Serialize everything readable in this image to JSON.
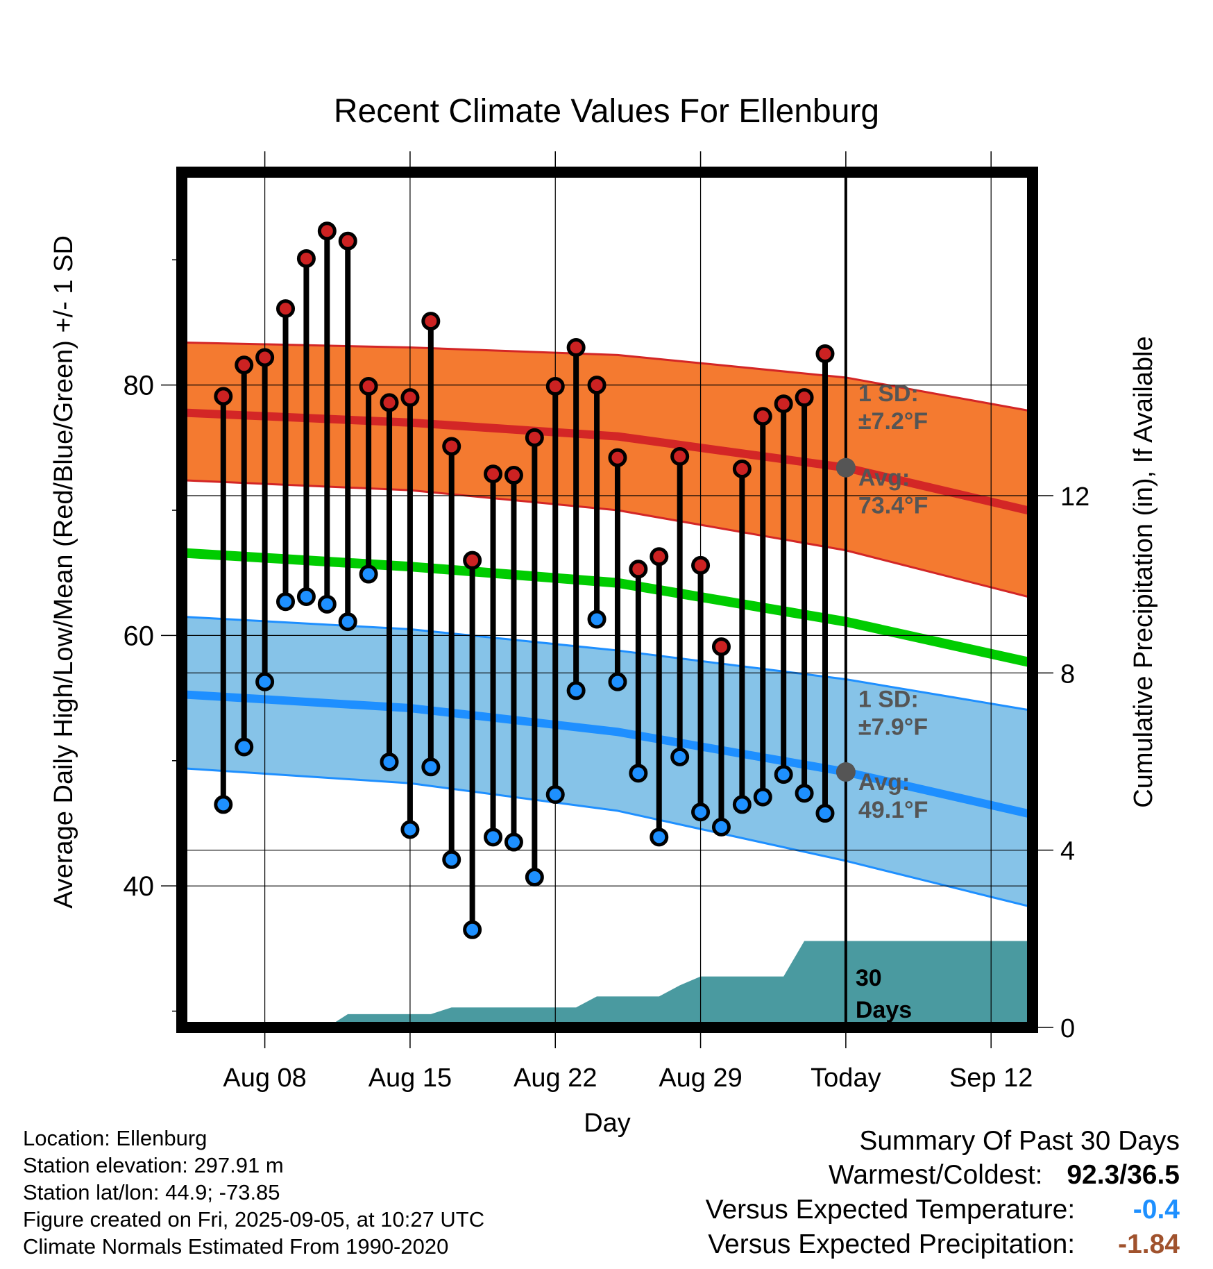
{
  "chart_data": {
    "type": "line",
    "title": "Recent Climate Values For Ellenburg",
    "xlabel": "Day",
    "ylabel": "Average Daily High/Low/Mean (Red/Blue/Green) +/- 1 SD",
    "y2label": "Cumulative Precipitation (in), If Available",
    "x_tick_labels": [
      "Aug 08",
      "Aug 15",
      "Aug 22",
      "Aug 29",
      "Today",
      "Sep 12"
    ],
    "x_tick_days": [
      "2025-08-08",
      "2025-08-15",
      "2025-08-22",
      "2025-08-29",
      "2025-09-05",
      "2025-09-12"
    ],
    "xlim": [
      "2025-08-04",
      "2025-09-14"
    ],
    "ylim": [
      28.7,
      97
    ],
    "y_ticks": [
      40,
      60,
      80
    ],
    "y2lim": [
      0,
      19.3
    ],
    "y2_ticks": [
      0,
      4,
      8,
      12
    ],
    "grid": true,
    "today": "2025-09-05",
    "daily_dates": [
      "2025-08-06",
      "2025-08-07",
      "2025-08-08",
      "2025-08-09",
      "2025-08-10",
      "2025-08-11",
      "2025-08-12",
      "2025-08-13",
      "2025-08-14",
      "2025-08-15",
      "2025-08-16",
      "2025-08-17",
      "2025-08-18",
      "2025-08-19",
      "2025-08-20",
      "2025-08-21",
      "2025-08-22",
      "2025-08-23",
      "2025-08-24",
      "2025-08-25",
      "2025-08-26",
      "2025-08-27",
      "2025-08-28",
      "2025-08-29",
      "2025-08-30",
      "2025-08-31",
      "2025-09-01",
      "2025-09-02",
      "2025-09-03",
      "2025-09-04"
    ],
    "series": [
      {
        "name": "Daily High",
        "color": "#cc2222",
        "values": [
          79.1,
          81.6,
          82.2,
          86.1,
          90.1,
          92.3,
          91.5,
          79.9,
          78.6,
          79.0,
          85.1,
          75.1,
          66.0,
          72.9,
          72.8,
          75.8,
          79.9,
          83.0,
          80.0,
          74.2,
          65.3,
          66.3,
          74.3,
          65.6,
          59.1,
          73.3,
          77.5,
          78.5,
          79.0,
          82.5
        ]
      },
      {
        "name": "Daily Low",
        "color": "#1e90ff",
        "values": [
          46.5,
          51.1,
          56.3,
          62.7,
          63.1,
          62.5,
          61.1,
          64.9,
          49.9,
          44.5,
          49.5,
          42.1,
          36.5,
          43.9,
          43.5,
          40.7,
          47.3,
          55.6,
          61.3,
          56.3,
          49.0,
          43.9,
          50.3,
          45.9,
          44.7,
          46.5,
          47.1,
          48.9,
          47.4,
          45.8
        ]
      }
    ],
    "normals": {
      "dates": [
        "2025-08-04",
        "2025-08-15",
        "2025-08-25",
        "2025-09-05",
        "2025-09-14"
      ],
      "high_mean": [
        77.8,
        77.0,
        75.9,
        73.4,
        69.9
      ],
      "high_upper": [
        83.4,
        83.0,
        82.4,
        80.6,
        77.9
      ],
      "high_lower": [
        72.4,
        71.6,
        70.0,
        66.8,
        63.0
      ],
      "low_mean": [
        55.3,
        54.2,
        52.3,
        49.1,
        45.7
      ],
      "low_upper": [
        61.5,
        60.5,
        58.8,
        56.5,
        54.0
      ],
      "low_lower": [
        49.4,
        48.2,
        46.0,
        42.0,
        38.3
      ],
      "mean": [
        66.6,
        65.5,
        64.2,
        61.1,
        57.8
      ]
    },
    "precipitation": {
      "dates": [
        "2025-08-04",
        "2025-08-10",
        "2025-08-11",
        "2025-08-12",
        "2025-08-15",
        "2025-08-16",
        "2025-08-17",
        "2025-08-20",
        "2025-08-22",
        "2025-08-23",
        "2025-08-24",
        "2025-08-25",
        "2025-08-26",
        "2025-08-27",
        "2025-08-28",
        "2025-08-29",
        "2025-08-30",
        "2025-08-31",
        "2025-09-01",
        "2025-09-02",
        "2025-09-03",
        "2025-09-04",
        "2025-09-14"
      ],
      "values": [
        0,
        0,
        0,
        0.3,
        0.3,
        0.3,
        0.45,
        0.45,
        0.45,
        0.45,
        0.7,
        0.7,
        0.7,
        0.7,
        0.95,
        1.15,
        1.15,
        1.15,
        1.15,
        1.15,
        1.95,
        1.95,
        1.95
      ]
    },
    "annotations": {
      "high_sd": "1 SD:",
      "high_sd_val": "±7.2°F",
      "high_avg": "Avg:",
      "high_avg_val": "73.4°F",
      "low_sd": "1 SD:",
      "low_sd_val": "±7.9°F",
      "low_avg": "Avg:",
      "low_avg_val": "49.1°F",
      "precip_label_1": "30",
      "precip_label_2": "Days"
    },
    "colors": {
      "high_band": "#f47a30",
      "high_line": "#d32626",
      "low_band": "#86c3e8",
      "low_line": "#1e8fff",
      "mean_line": "#00cc00",
      "precip": "#4a9aa0",
      "annotation": "#555555"
    }
  },
  "info": {
    "location": "Location: Ellenburg",
    "elevation": "Station elevation: 297.91 m",
    "latlon": "Station lat/lon: 44.9; -73.85",
    "created": "Figure created on Fri, 2025-09-05, at 10:27 UTC",
    "normals": "Climate Normals Estimated From 1990-2020"
  },
  "summary": {
    "heading": "Summary Of Past 30 Days",
    "warm_label": "Warmest/Coldest:",
    "warm_value": "92.3/36.5",
    "temp_label": "Versus Expected Temperature:",
    "temp_value": "-0.4",
    "temp_color": "#1e90ff",
    "precip_label": "Versus Expected Precipitation:",
    "precip_value": "-1.84",
    "precip_color": "#a0522d"
  }
}
